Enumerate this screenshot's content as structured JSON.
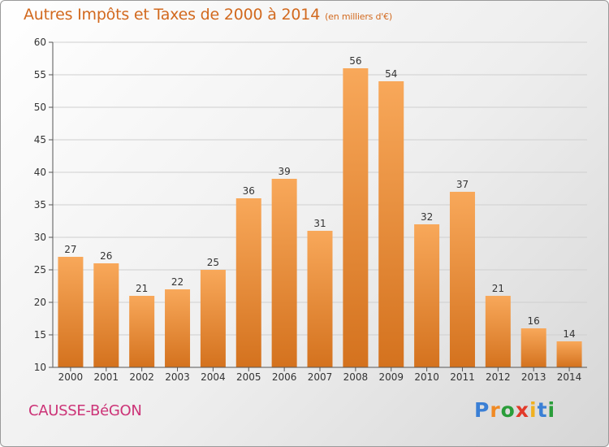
{
  "title": "Autres Impôts et Taxes de 2000 à 2014",
  "unit": "(en milliers d'€)",
  "commune": "CAUSSE-BéGON",
  "logo": {
    "letters": [
      "P",
      "r",
      "o",
      "x",
      "i",
      "t",
      "i"
    ],
    "colors": [
      "#3a7fd5",
      "#f08a24",
      "#2a9d3a",
      "#e23a2a",
      "#f0b020",
      "#3a7fd5",
      "#2a9d3a"
    ]
  },
  "colors": {
    "bar_top": "#f8a85a",
    "bar_bottom": "#d4721e",
    "title": "#d2691e",
    "commune": "#cc3377"
  },
  "chart_data": {
    "type": "bar",
    "categories": [
      "2000",
      "2001",
      "2002",
      "2003",
      "2004",
      "2005",
      "2006",
      "2007",
      "2008",
      "2009",
      "2010",
      "2011",
      "2012",
      "2013",
      "2014"
    ],
    "values": [
      27,
      26,
      21,
      22,
      25,
      36,
      39,
      31,
      56,
      54,
      32,
      37,
      21,
      16,
      14
    ],
    "yticks": [
      10,
      15,
      20,
      25,
      30,
      35,
      40,
      45,
      50,
      55,
      60
    ],
    "ylim": [
      10,
      60
    ],
    "grid": true
  }
}
